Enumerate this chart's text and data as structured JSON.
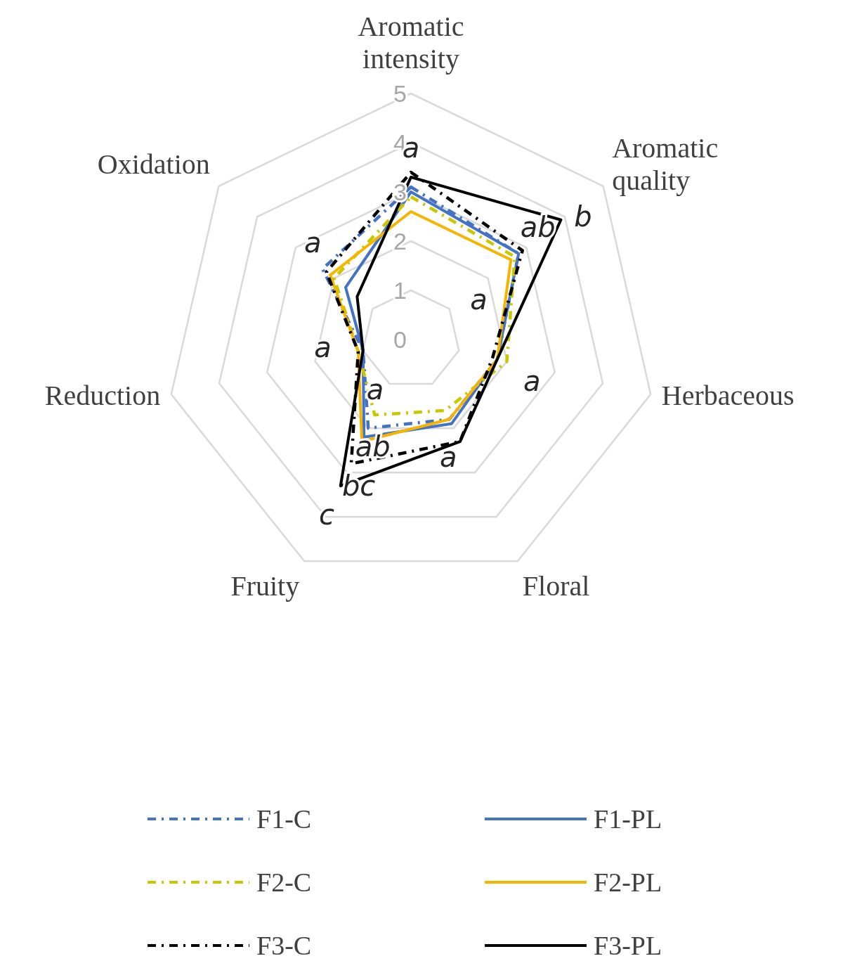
{
  "chart_data": {
    "type": "radar",
    "categories": [
      "Aromatic intensity",
      "Aromatic quality",
      "Herbaceous",
      "Floral",
      "Fruity",
      "Reduction",
      "Oxidation"
    ],
    "ylim": [
      0,
      5
    ],
    "yticks": [
      0,
      1,
      2,
      3,
      4,
      5
    ],
    "grid": true,
    "legend": "bottom",
    "series": [
      {
        "name": "F1-C",
        "color": "#4472c4",
        "line_style": "dashed",
        "values": [
          3.1,
          2.8,
          1.8,
          1.8,
          2.0,
          1.0,
          2.3
        ]
      },
      {
        "name": "F1-PL",
        "color": "#4472c4",
        "line_style": "solid",
        "values": [
          3.0,
          2.8,
          1.8,
          1.9,
          2.2,
          1.0,
          1.7
        ]
      },
      {
        "name": "F2-C",
        "color": "#c8c800",
        "line_style": "dashed",
        "values": [
          2.9,
          2.7,
          2.0,
          1.6,
          1.7,
          1.1,
          2.0
        ]
      },
      {
        "name": "F2-PL",
        "color": "#f5b400",
        "line_style": "solid",
        "values": [
          2.6,
          2.6,
          1.8,
          1.8,
          2.3,
          1.1,
          2.1
        ]
      },
      {
        "name": "F3-C",
        "color": "#000000",
        "line_style": "dashed",
        "values": [
          3.4,
          2.9,
          1.7,
          2.3,
          2.8,
          1.1,
          2.2
        ]
      },
      {
        "name": "F3-PL",
        "color": "#000000",
        "line_style": "solid",
        "values": [
          3.3,
          3.9,
          1.8,
          2.3,
          3.3,
          1.0,
          1.4
        ]
      }
    ],
    "annotations": [
      {
        "text": "a",
        "x": "Aromatic intensity"
      },
      {
        "text": "ab",
        "x": "Aromatic quality"
      },
      {
        "text": "b",
        "x": "Aromatic quality"
      },
      {
        "text": "a",
        "x": "Aromatic quality"
      },
      {
        "text": "a",
        "x": "Herbaceous"
      },
      {
        "text": "a",
        "x": "Floral"
      },
      {
        "text": "c",
        "x": "Fruity"
      },
      {
        "text": "bc",
        "x": "Fruity"
      },
      {
        "text": "ab",
        "x": "Fruity"
      },
      {
        "text": "a",
        "x": "Fruity"
      },
      {
        "text": "a",
        "x": "Reduction"
      },
      {
        "text": "a",
        "x": "Oxidation"
      }
    ]
  }
}
